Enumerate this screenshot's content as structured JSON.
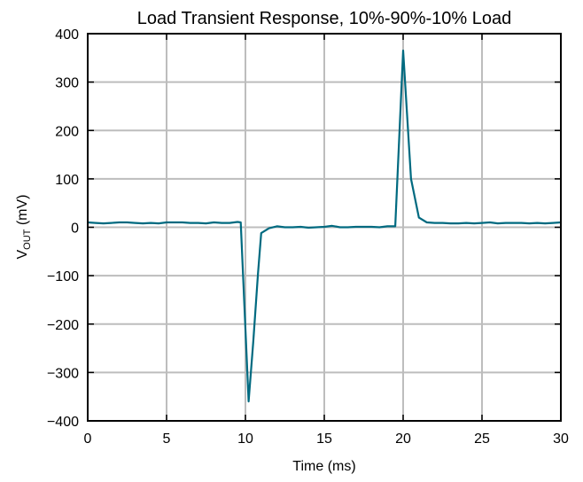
{
  "chart_data": {
    "type": "line",
    "title": "Load Transient Response, 10%-90%-10% Load",
    "xlabel": "Time (ms)",
    "ylabel": {
      "main": "V",
      "subscript": "OUT",
      "suffix": " (mV)"
    },
    "xlim": [
      0,
      30
    ],
    "ylim": [
      -400,
      400
    ],
    "xticks": [
      0,
      5,
      10,
      15,
      20,
      25,
      30
    ],
    "xtick_labels": [
      "0",
      "5",
      "10",
      "15",
      "20",
      "25",
      "30"
    ],
    "yticks": [
      400,
      300,
      200,
      100,
      0,
      -100,
      -200,
      -300,
      -400
    ],
    "ytick_labels": [
      "400",
      "300",
      "200",
      "100",
      "0",
      "−100",
      "−200",
      "−300",
      "−400"
    ],
    "grid": true,
    "line_color": "#006a80",
    "series": [
      {
        "x": [
          0,
          0.5,
          1,
          1.5,
          2,
          2.5,
          3,
          3.5,
          4,
          4.5,
          5,
          5.5,
          6,
          6.5,
          7,
          7.5,
          8,
          8.5,
          9,
          9.5,
          9.7,
          10.2,
          10.5,
          10.8,
          11,
          11.5,
          12,
          12.5,
          13,
          13.5,
          14,
          14.5,
          15,
          15.5,
          16,
          16.5,
          17,
          17.5,
          18,
          18.5,
          19,
          19.5,
          20,
          20.5,
          21,
          21.5,
          22,
          22.5,
          23,
          23.5,
          24,
          24.5,
          25,
          25.5,
          26,
          26.5,
          27,
          27.5,
          28,
          28.5,
          29,
          29.5,
          30
        ],
        "y": [
          10,
          9,
          8,
          9,
          10,
          10,
          9,
          8,
          9,
          8,
          10,
          10,
          10,
          9,
          9,
          8,
          10,
          9,
          9,
          11,
          10,
          -360,
          -235,
          -95,
          -12,
          -2,
          2,
          0,
          0,
          1,
          -1,
          0,
          1,
          3,
          0,
          0,
          1,
          1,
          1,
          0,
          2,
          2,
          365,
          100,
          20,
          10,
          9,
          9,
          8,
          8,
          9,
          8,
          9,
          10,
          8,
          9,
          9,
          9,
          8,
          9,
          8,
          9,
          10
        ]
      }
    ]
  }
}
